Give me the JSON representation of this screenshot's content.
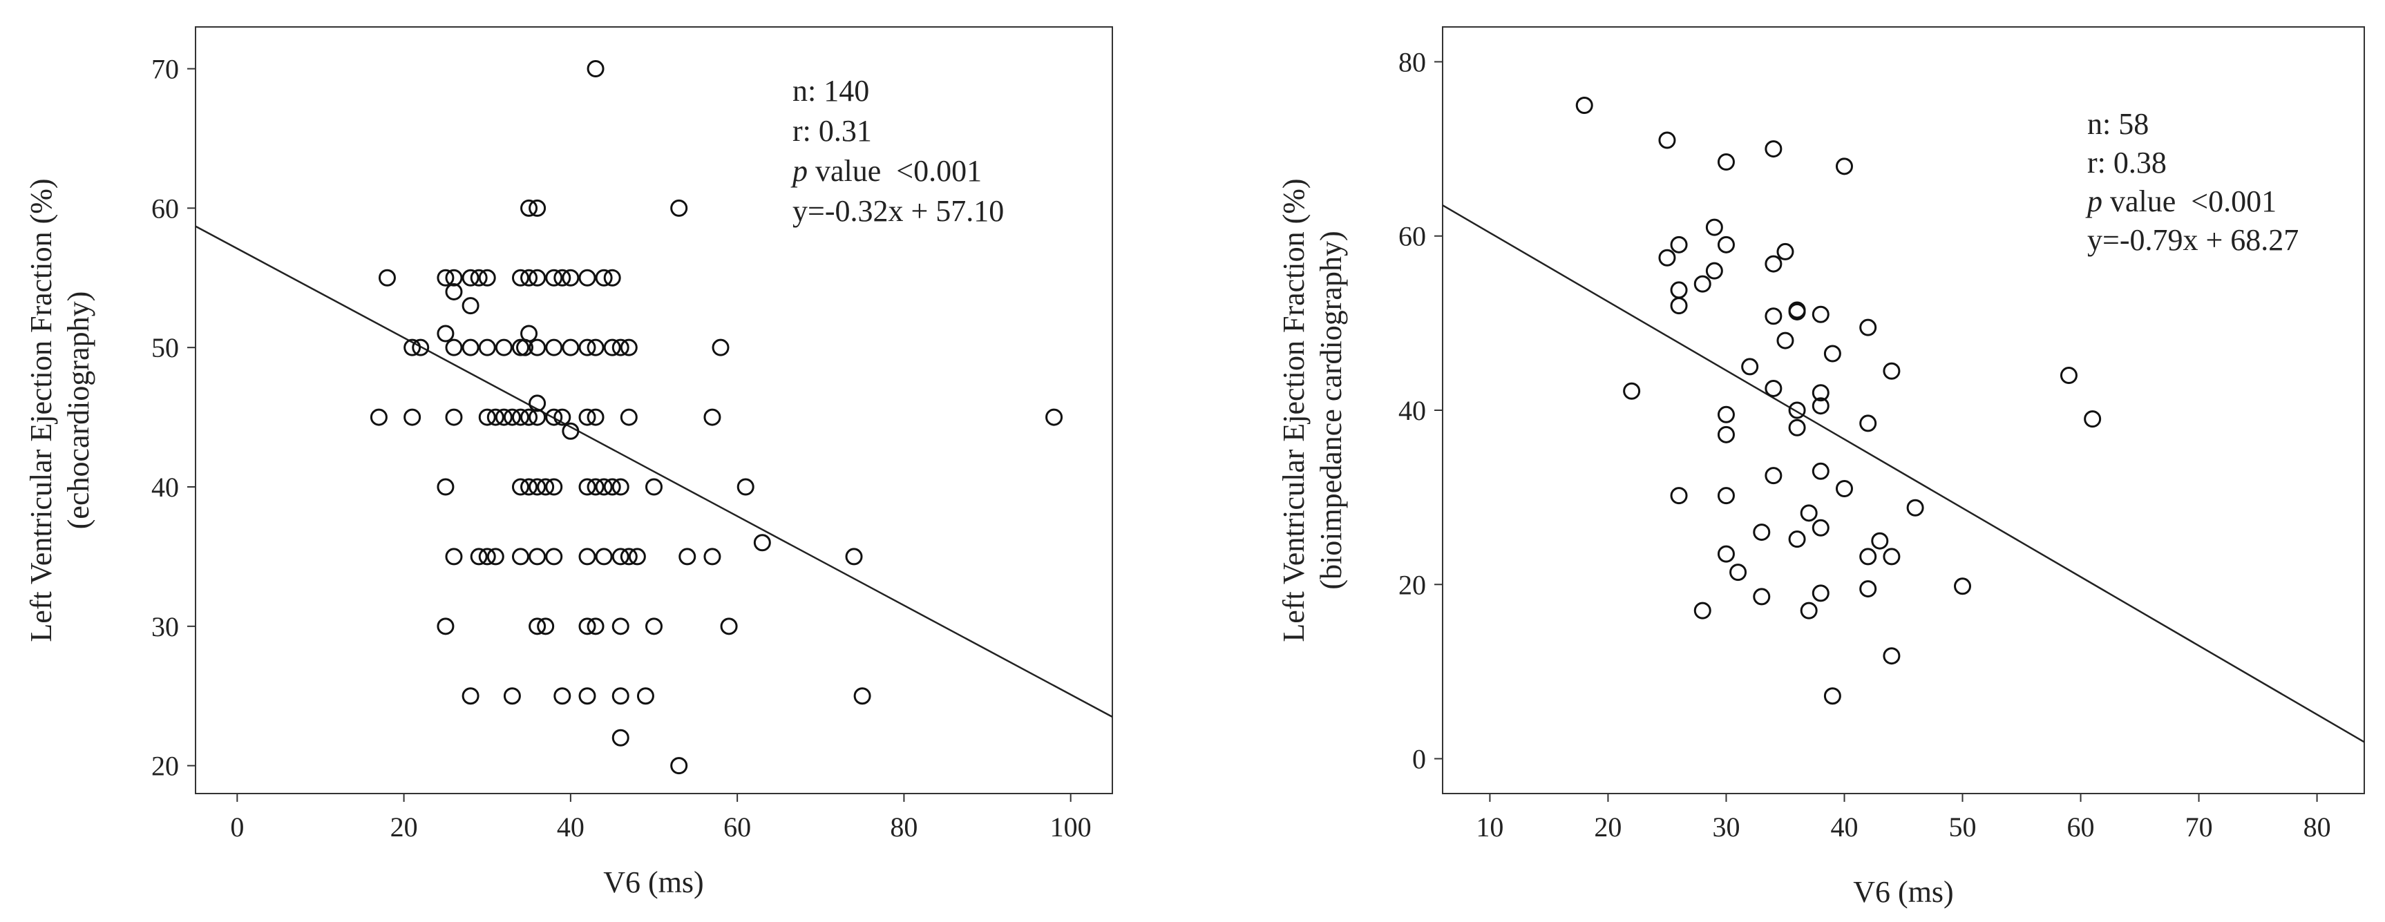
{
  "chart_data": [
    {
      "type": "scatter",
      "xlabel": "V6  (ms)",
      "ylabel_lines": [
        "Left Ventricular Ejection Fraction (%)",
        "(echocardiography)"
      ],
      "xlim": [
        -5,
        105
      ],
      "ylim": [
        18,
        73
      ],
      "xticks": [
        0,
        20,
        40,
        60,
        80,
        100
      ],
      "yticks": [
        20,
        30,
        40,
        50,
        60,
        70
      ],
      "grid": false,
      "annotation_lines": [
        "n: 140",
        "r: 0.31",
        "p value  <0.001",
        "y=-0.32x + 57.10"
      ],
      "regression": {
        "slope": -0.32,
        "intercept": 57.1
      },
      "points": [
        [
          43,
          70
        ],
        [
          35,
          60
        ],
        [
          36,
          60
        ],
        [
          53,
          60
        ],
        [
          18,
          55
        ],
        [
          25,
          55
        ],
        [
          26,
          55
        ],
        [
          28,
          55
        ],
        [
          29,
          55
        ],
        [
          30,
          55
        ],
        [
          34,
          55
        ],
        [
          35,
          55
        ],
        [
          36,
          55
        ],
        [
          38,
          55
        ],
        [
          39,
          55
        ],
        [
          40,
          55
        ],
        [
          42,
          55
        ],
        [
          44,
          55
        ],
        [
          45,
          55
        ],
        [
          26,
          54
        ],
        [
          28,
          53
        ],
        [
          25,
          51
        ],
        [
          35,
          51
        ],
        [
          21,
          50
        ],
        [
          22,
          50
        ],
        [
          26,
          50
        ],
        [
          28,
          50
        ],
        [
          30,
          50
        ],
        [
          32,
          50
        ],
        [
          34,
          50
        ],
        [
          34.5,
          50
        ],
        [
          36,
          50
        ],
        [
          38,
          50
        ],
        [
          40,
          50
        ],
        [
          42,
          50
        ],
        [
          43,
          50
        ],
        [
          45,
          50
        ],
        [
          46,
          50
        ],
        [
          47,
          50
        ],
        [
          58,
          50
        ],
        [
          36,
          46
        ],
        [
          17,
          45
        ],
        [
          21,
          45
        ],
        [
          26,
          45
        ],
        [
          30,
          45
        ],
        [
          31,
          45
        ],
        [
          32,
          45
        ],
        [
          33,
          45
        ],
        [
          34,
          45
        ],
        [
          35,
          45
        ],
        [
          36,
          45
        ],
        [
          38,
          45
        ],
        [
          39,
          45
        ],
        [
          42,
          45
        ],
        [
          43,
          45
        ],
        [
          47,
          45
        ],
        [
          57,
          45
        ],
        [
          98,
          45
        ],
        [
          40,
          44
        ],
        [
          25,
          40
        ],
        [
          34,
          40
        ],
        [
          35,
          40
        ],
        [
          36,
          40
        ],
        [
          37,
          40
        ],
        [
          38,
          40
        ],
        [
          42,
          40
        ],
        [
          43,
          40
        ],
        [
          44,
          40
        ],
        [
          45,
          40
        ],
        [
          46,
          40
        ],
        [
          50,
          40
        ],
        [
          61,
          40
        ],
        [
          63,
          36
        ],
        [
          26,
          35
        ],
        [
          29,
          35
        ],
        [
          30,
          35
        ],
        [
          31,
          35
        ],
        [
          34,
          35
        ],
        [
          36,
          35
        ],
        [
          38,
          35
        ],
        [
          42,
          35
        ],
        [
          44,
          35
        ],
        [
          46,
          35
        ],
        [
          47,
          35
        ],
        [
          48,
          35
        ],
        [
          54,
          35
        ],
        [
          57,
          35
        ],
        [
          74,
          35
        ],
        [
          25,
          30
        ],
        [
          36,
          30
        ],
        [
          37,
          30
        ],
        [
          42,
          30
        ],
        [
          43,
          30
        ],
        [
          46,
          30
        ],
        [
          50,
          30
        ],
        [
          59,
          30
        ],
        [
          28,
          25
        ],
        [
          33,
          25
        ],
        [
          39,
          25
        ],
        [
          42,
          25
        ],
        [
          46,
          25
        ],
        [
          49,
          25
        ],
        [
          75,
          25
        ],
        [
          46,
          22
        ],
        [
          53,
          20
        ]
      ]
    },
    {
      "type": "scatter",
      "xlabel": "V6  (ms)",
      "ylabel_lines": [
        "Left Ventricular Ejection Fraction (%)",
        "(bioimpedance cardiography)"
      ],
      "xlim": [
        6,
        84
      ],
      "ylim": [
        -4,
        84
      ],
      "xticks": [
        10,
        20,
        30,
        40,
        50,
        60,
        70,
        80
      ],
      "yticks": [
        0,
        20,
        40,
        60,
        80
      ],
      "grid": false,
      "annotation_lines": [
        "n: 58",
        "r: 0.38",
        "p value  <0.001",
        "y=-0.79x + 68.27"
      ],
      "regression": {
        "slope": -0.79,
        "intercept": 68.27
      },
      "points": [
        [
          18,
          75
        ],
        [
          25,
          71
        ],
        [
          34,
          70
        ],
        [
          30,
          68.5
        ],
        [
          40,
          68
        ],
        [
          29,
          61
        ],
        [
          26,
          59
        ],
        [
          30,
          59
        ],
        [
          35,
          58.2
        ],
        [
          25,
          57.5
        ],
        [
          34,
          56.8
        ],
        [
          29,
          56
        ],
        [
          28,
          54.5
        ],
        [
          26,
          53.8
        ],
        [
          26,
          52
        ],
        [
          34,
          50.8
        ],
        [
          36,
          51.3
        ],
        [
          36,
          51.5
        ],
        [
          38,
          51
        ],
        [
          42,
          49.5
        ],
        [
          35,
          48
        ],
        [
          39,
          46.5
        ],
        [
          32,
          45
        ],
        [
          44,
          44.5
        ],
        [
          59,
          44
        ],
        [
          22,
          42.2
        ],
        [
          34,
          42.5
        ],
        [
          38,
          42
        ],
        [
          38,
          40.5
        ],
        [
          36,
          40
        ],
        [
          30,
          39.5
        ],
        [
          61,
          39
        ],
        [
          42,
          38.5
        ],
        [
          36,
          38
        ],
        [
          30,
          37.2
        ],
        [
          34,
          32.5
        ],
        [
          38,
          33
        ],
        [
          40,
          31
        ],
        [
          26,
          30.2
        ],
        [
          30,
          30.2
        ],
        [
          46,
          28.8
        ],
        [
          37,
          28.2
        ],
        [
          38,
          26.5
        ],
        [
          33,
          26
        ],
        [
          36,
          25.2
        ],
        [
          43,
          25
        ],
        [
          30,
          23.5
        ],
        [
          42,
          23.2
        ],
        [
          44,
          23.2
        ],
        [
          31,
          21.4
        ],
        [
          50,
          19.8
        ],
        [
          42,
          19.5
        ],
        [
          38,
          19
        ],
        [
          33,
          18.6
        ],
        [
          28,
          17
        ],
        [
          37,
          17
        ],
        [
          44,
          11.8
        ],
        [
          39,
          7.2
        ]
      ]
    }
  ]
}
